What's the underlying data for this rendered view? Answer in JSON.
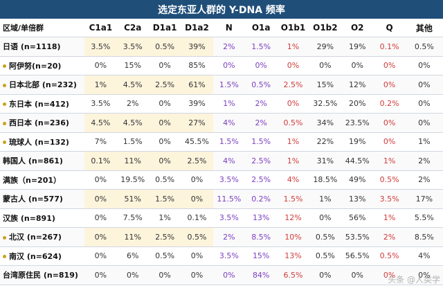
{
  "title": "选定东亚人群的 Y-DNA 频率",
  "header": [
    "区域/单倍群",
    "C1a1",
    "C2a",
    "D1a1",
    "D1a2",
    "N",
    "O1a",
    "O1b1",
    "O1b2",
    "O2",
    "Q",
    "其他"
  ],
  "rows": [
    {
      "label": "日语 (n=1118)",
      "bullet": false,
      "values": [
        "3.5%",
        "3.5%",
        "0.5%",
        "39%",
        "2%",
        "1.5%",
        "1%",
        "29%",
        "19%",
        "0.1%",
        "0.5%"
      ]
    },
    {
      "label": "阿伊努(n=20)",
      "bullet": true,
      "values": [
        "0%",
        "15%",
        "0%",
        "85%",
        "0%",
        "0%",
        "0%",
        "0%",
        "0%",
        "0%",
        "0%"
      ]
    },
    {
      "label": "日本北部 (n=232)",
      "bullet": true,
      "values": [
        "1%",
        "4.5%",
        "2.5%",
        "61%",
        "1.5%",
        "0.5%",
        "2.5%",
        "15%",
        "12%",
        "0%",
        "0%"
      ]
    },
    {
      "label": "东日本 (n=412)",
      "bullet": true,
      "values": [
        "3.5%",
        "2%",
        "0%",
        "39%",
        "1%",
        "2%",
        "0%",
        "32.5%",
        "20%",
        "0.2%",
        "0%"
      ]
    },
    {
      "label": "西日本 (n=236)",
      "bullet": true,
      "values": [
        "4.5%",
        "4.5%",
        "0%",
        "27%",
        "4%",
        "2%",
        "0.5%",
        "34%",
        "23.5%",
        "0%",
        "0%"
      ]
    },
    {
      "label": "琉球人 (n=132)",
      "bullet": true,
      "values": [
        "7%",
        "1.5%",
        "0%",
        "45.5%",
        "1.5%",
        "1.5%",
        "1%",
        "22%",
        "19%",
        "0%",
        "1%"
      ]
    },
    {
      "label": "韩国人 (n=861)",
      "bullet": false,
      "values": [
        "0.1%",
        "11%",
        "0%",
        "2.5%",
        "4%",
        "2.5%",
        "1%",
        "31%",
        "44.5%",
        "1%",
        "2%"
      ]
    },
    {
      "label": "满族（n=201）",
      "bullet": false,
      "values": [
        "0%",
        "19.5%",
        "0.5%",
        "0%",
        "3.5%",
        "2.5%",
        "4%",
        "18.5%",
        "49%",
        "0.5%",
        "2%"
      ]
    },
    {
      "label": "蒙古人 (n=577)",
      "bullet": false,
      "values": [
        "0%",
        "51%",
        "1.5%",
        "0%",
        "11.5%",
        "0.2%",
        "1.5%",
        "1%",
        "13%",
        "3.5%",
        "17%"
      ]
    },
    {
      "label": "汉族 (n=891)",
      "bullet": false,
      "values": [
        "0%",
        "7.5%",
        "1%",
        "0.1%",
        "3.5%",
        "13%",
        "12%",
        "0%",
        "56%",
        "1%",
        "5.5%"
      ]
    },
    {
      "label": "北汉 (n=267)",
      "bullet": true,
      "values": [
        "0%",
        "11%",
        "2.5%",
        "0.5%",
        "2%",
        "8.5%",
        "10%",
        "0.5%",
        "53.5%",
        "2%",
        "8.5%"
      ]
    },
    {
      "label": "南汉 (n=624)",
      "bullet": true,
      "values": [
        "0%",
        "6%",
        "0.5%",
        "0%",
        "3.5%",
        "15%",
        "13%",
        "0.5%",
        "56.5%",
        "0.5%",
        "4%"
      ]
    },
    {
      "label": "台湾原住民 (n=819)",
      "bullet": false,
      "values": [
        "0%",
        "0%",
        "0%",
        "0%",
        "0%",
        "84%",
        "6.5%",
        "0%",
        "0%",
        "0%",
        "0%"
      ]
    }
  ],
  "colors": {
    "title_bg": "#1f4e79",
    "highlight": "#fdf4dc",
    "purple": "#7b3fc2",
    "red": "#d23a3a",
    "green": "#3b8a3b",
    "bullet": "#c9a21a"
  },
  "highlight_rows": [
    0,
    2,
    4,
    6,
    8,
    10
  ],
  "watermark": "头条 @人类学"
}
